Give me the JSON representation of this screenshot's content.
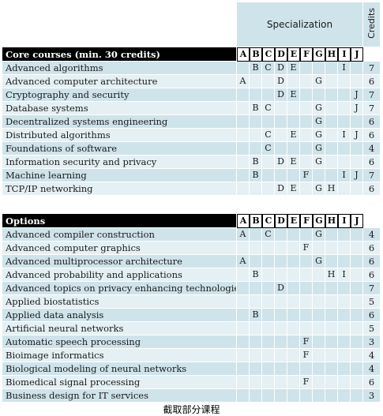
{
  "header": {
    "specialization_label": "Specialization",
    "credits_label": "Credits"
  },
  "letters": [
    "A",
    "B",
    "C",
    "D",
    "E",
    "F",
    "G",
    "H",
    "I",
    "J"
  ],
  "core": {
    "title": "Core courses (min. 30 credits)",
    "rows": [
      {
        "name": "Advanced algorithms",
        "cells": [
          "",
          "B",
          "C",
          "D",
          "E",
          "",
          "",
          "",
          "I",
          ""
        ],
        "credits": "7"
      },
      {
        "name": "Advanced computer architecture",
        "cells": [
          "A",
          "",
          "",
          "D",
          "",
          "",
          "G",
          "",
          "",
          ""
        ],
        "credits": "6"
      },
      {
        "name": "Cryptography and security",
        "cells": [
          "",
          "",
          "",
          "D",
          "E",
          "",
          "",
          "",
          "",
          "J"
        ],
        "credits": "7"
      },
      {
        "name": "Database systems",
        "cells": [
          "",
          "B",
          "C",
          "",
          "",
          "",
          "G",
          "",
          "",
          "J"
        ],
        "credits": "7"
      },
      {
        "name": "Decentralized systems engineering",
        "cells": [
          "",
          "",
          "",
          "",
          "",
          "",
          "G",
          "",
          "",
          ""
        ],
        "credits": "6"
      },
      {
        "name": "Distributed algorithms",
        "cells": [
          "",
          "",
          "C",
          "",
          "E",
          "",
          "G",
          "",
          "I",
          "J"
        ],
        "credits": "6"
      },
      {
        "name": "Foundations of software",
        "cells": [
          "",
          "",
          "C",
          "",
          "",
          "",
          "G",
          "",
          "",
          ""
        ],
        "credits": "4"
      },
      {
        "name": "Information security and privacy",
        "cells": [
          "",
          "B",
          "",
          "D",
          "E",
          "",
          "G",
          "",
          "",
          ""
        ],
        "credits": "6"
      },
      {
        "name": "Machine learning",
        "cells": [
          "",
          "B",
          "",
          "",
          "",
          "F",
          "",
          "",
          "I",
          "J"
        ],
        "credits": "7"
      },
      {
        "name": "TCP/IP networking",
        "cells": [
          "",
          "",
          "",
          "D",
          "E",
          "",
          "G",
          "H",
          "",
          ""
        ],
        "credits": "6"
      }
    ]
  },
  "options": {
    "title": "Options",
    "rows": [
      {
        "name": "Advanced compiler construction",
        "cells": [
          "A",
          "",
          "C",
          "",
          "",
          "",
          "G",
          "",
          "",
          ""
        ],
        "credits": "4"
      },
      {
        "name": "Advanced computer graphics",
        "cells": [
          "",
          "",
          "",
          "",
          "",
          "F",
          "",
          "",
          "",
          ""
        ],
        "credits": "6"
      },
      {
        "name": "Advanced multiprocessor architecture",
        "cells": [
          "A",
          "",
          "",
          "",
          "",
          "",
          "G",
          "",
          "",
          ""
        ],
        "credits": "6"
      },
      {
        "name": "Advanced probability and applications",
        "cells": [
          "",
          "B",
          "",
          "",
          "",
          "",
          "",
          "H",
          "I",
          ""
        ],
        "credits": "6"
      },
      {
        "name": "Advanced topics on privacy enhancing technologies",
        "cells": [
          "",
          "",
          "",
          "D",
          "",
          "",
          "",
          "",
          "",
          ""
        ],
        "credits": "7"
      },
      {
        "name": "Applied biostatistics",
        "cells": [
          "",
          "",
          "",
          "",
          "",
          "",
          "",
          "",
          "",
          ""
        ],
        "credits": "5"
      },
      {
        "name": "Applied data analysis",
        "cells": [
          "",
          "B",
          "",
          "",
          "",
          "",
          "",
          "",
          "",
          ""
        ],
        "credits": "6"
      },
      {
        "name": "Artificial neural networks",
        "cells": [
          "",
          "",
          "",
          "",
          "",
          "",
          "",
          "",
          "",
          ""
        ],
        "credits": "5"
      },
      {
        "name": "Automatic speech processing",
        "cells": [
          "",
          "",
          "",
          "",
          "",
          "F",
          "",
          "",
          "",
          ""
        ],
        "credits": "3"
      },
      {
        "name": "Bioimage informatics",
        "cells": [
          "",
          "",
          "",
          "",
          "",
          "F",
          "",
          "",
          "",
          ""
        ],
        "credits": "4"
      },
      {
        "name": "Biological modeling of neural networks",
        "cells": [
          "",
          "",
          "",
          "",
          "",
          "",
          "",
          "",
          "",
          ""
        ],
        "credits": "4"
      },
      {
        "name": "Biomedical signal processing",
        "cells": [
          "",
          "",
          "",
          "",
          "",
          "F",
          "",
          "",
          "",
          ""
        ],
        "credits": "6"
      },
      {
        "name": "Business design for IT services",
        "cells": [
          "",
          "",
          "",
          "",
          "",
          "",
          "",
          "",
          "",
          ""
        ],
        "credits": "3"
      }
    ]
  },
  "caption": "截取部分课程"
}
